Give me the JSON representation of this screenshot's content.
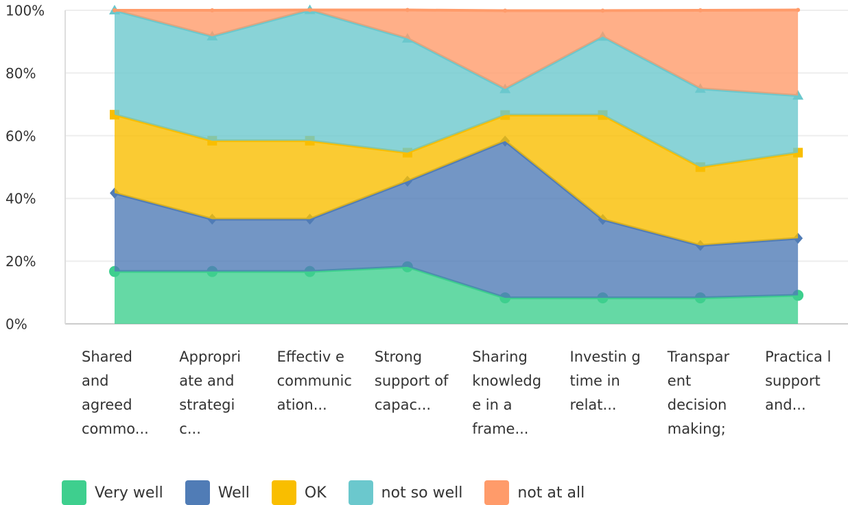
{
  "chart_data": {
    "type": "stacked_area",
    "categories": [
      "Shared and agreed commo...",
      "Appropri ate and strategi c...",
      "Effectiv e communic ation...",
      "Strong support of capac...",
      "Sharing knowledg e in a frame...",
      "Investin g time in relat...",
      "Transpar ent decision making;",
      "Practica l support and..."
    ],
    "series": [
      {
        "name": "Very well",
        "color": "#3ecf8e",
        "values": [
          16.7,
          16.7,
          16.7,
          18.2,
          8.3,
          8.3,
          8.3,
          9.1
        ]
      },
      {
        "name": "Well",
        "color": "#507cb6",
        "values": [
          25,
          16.7,
          16.7,
          27.3,
          50,
          25,
          16.7,
          18.2
        ]
      },
      {
        "name": "OK",
        "color": "#f9be00",
        "values": [
          25,
          25,
          25,
          9.1,
          8.3,
          33.3,
          25,
          27.3
        ]
      },
      {
        "name": "not so well",
        "color": "#6bc8cd",
        "values": [
          33.3,
          33.3,
          41.7,
          36.4,
          8.3,
          25,
          25,
          18.2
        ]
      },
      {
        "name": "not at all",
        "color": "#ff9b6a",
        "values": [
          0,
          8.3,
          0,
          9.1,
          25,
          8.3,
          25,
          27.3
        ]
      }
    ],
    "ylim": [
      0,
      100
    ],
    "yticks": [
      {
        "value": 0,
        "label": "0%"
      },
      {
        "value": 20,
        "label": "20%"
      },
      {
        "value": 40,
        "label": "40%"
      },
      {
        "value": 60,
        "label": "60%"
      },
      {
        "value": 80,
        "label": "80%"
      },
      {
        "value": 100,
        "label": "100%"
      }
    ],
    "grid": true
  }
}
